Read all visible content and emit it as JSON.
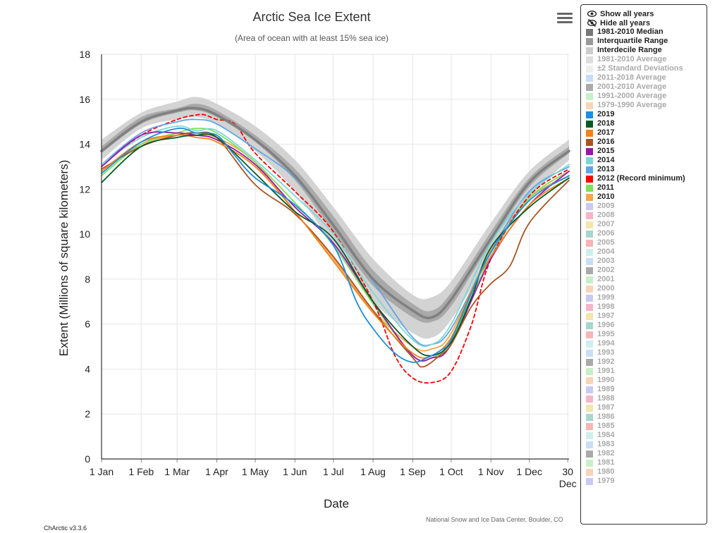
{
  "header": {
    "menu_icon": "hamburger-menu-icon"
  },
  "footer": {
    "version": "ChArctic v3.3.6",
    "credit": "National Snow and Ice Data Center, Boulder, CO"
  },
  "legend": {
    "show_all": "Show all years",
    "hide_all": "Hide all years",
    "show_icon": "eye-icon",
    "hide_icon": "eye-slash-icon",
    "items": [
      {
        "label": "1981-2010 Median",
        "color": "#777777",
        "active": true
      },
      {
        "label": "Interquartile Range",
        "color": "#999999",
        "active": true
      },
      {
        "label": "Interdecile Range",
        "color": "#cccccc",
        "active": true
      },
      {
        "label": "1981-2010 Average",
        "color": "#dddddd",
        "active": false
      },
      {
        "label": "±2 Standard Deviations",
        "color": "#eeeeee",
        "active": false
      },
      {
        "label": "2011-2018 Average",
        "color": "#c6dcf7",
        "active": false
      },
      {
        "label": "2001-2010 Average",
        "color": "#aaaaaa",
        "active": false
      },
      {
        "label": "1991-2000 Average",
        "color": "#c8f0c8",
        "active": false
      },
      {
        "label": "1979-1990 Average",
        "color": "#f7d5b8",
        "active": false
      },
      {
        "label": "2019",
        "color": "#1b8ee0",
        "active": true
      },
      {
        "label": "2018",
        "color": "#075b22",
        "active": true
      },
      {
        "label": "2017",
        "color": "#f58118",
        "active": true
      },
      {
        "label": "2016",
        "color": "#a85525",
        "active": true
      },
      {
        "label": "2015",
        "color": "#9b16a8",
        "active": true
      },
      {
        "label": "2014",
        "color": "#7ed6d6",
        "active": true
      },
      {
        "label": "2013",
        "color": "#5fa5e8",
        "active": true
      },
      {
        "label": "2012 (Record minimum)",
        "color": "#ff0000",
        "active": true
      },
      {
        "label": "2011",
        "color": "#7ee05a",
        "active": true
      },
      {
        "label": "2010",
        "color": "#f5a74a",
        "active": true
      },
      {
        "label": "2009",
        "color": "#c9c9f2",
        "active": false
      },
      {
        "label": "2008",
        "color": "#f5b5c8",
        "active": false
      },
      {
        "label": "2007",
        "color": "#f3e6ad",
        "active": false
      },
      {
        "label": "2006",
        "color": "#a8d6cc",
        "active": false
      },
      {
        "label": "2005",
        "color": "#f7b6b6",
        "active": false
      },
      {
        "label": "2004",
        "color": "#cdeff0",
        "active": false
      },
      {
        "label": "2003",
        "color": "#c8def5",
        "active": false
      },
      {
        "label": "2002",
        "color": "#aaaaaa",
        "active": false
      },
      {
        "label": "2001",
        "color": "#c8f0c8",
        "active": false
      },
      {
        "label": "2000",
        "color": "#f7d5b8",
        "active": false
      },
      {
        "label": "1999",
        "color": "#c9c9f2",
        "active": false
      },
      {
        "label": "1998",
        "color": "#f5b5c8",
        "active": false
      },
      {
        "label": "1997",
        "color": "#f3e6ad",
        "active": false
      },
      {
        "label": "1996",
        "color": "#a8d6cc",
        "active": false
      },
      {
        "label": "1995",
        "color": "#f7b6b6",
        "active": false
      },
      {
        "label": "1994",
        "color": "#cdeff0",
        "active": false
      },
      {
        "label": "1993",
        "color": "#c8def5",
        "active": false
      },
      {
        "label": "1992",
        "color": "#aaaaaa",
        "active": false
      },
      {
        "label": "1991",
        "color": "#c8f0c8",
        "active": false
      },
      {
        "label": "1990",
        "color": "#f7d5b8",
        "active": false
      },
      {
        "label": "1989",
        "color": "#c9c9f2",
        "active": false
      },
      {
        "label": "1988",
        "color": "#f5b5c8",
        "active": false
      },
      {
        "label": "1987",
        "color": "#f3e6ad",
        "active": false
      },
      {
        "label": "1986",
        "color": "#a8d6cc",
        "active": false
      },
      {
        "label": "1985",
        "color": "#f7b6b6",
        "active": false
      },
      {
        "label": "1984",
        "color": "#cdeff0",
        "active": false
      },
      {
        "label": "1983",
        "color": "#c8def5",
        "active": false
      },
      {
        "label": "1982",
        "color": "#aaaaaa",
        "active": false
      },
      {
        "label": "1981",
        "color": "#c8f0c8",
        "active": false
      },
      {
        "label": "1980",
        "color": "#f7d5b8",
        "active": false
      },
      {
        "label": "1979",
        "color": "#c9c9f2",
        "active": false
      }
    ]
  },
  "chart_data": {
    "type": "line",
    "title": "Arctic Sea Ice Extent",
    "subtitle": "(Area of ocean with at least 15% sea ice)",
    "xlabel": "Date",
    "ylabel": "Extent (Millions of square kilometers)",
    "x_unit": "day of year",
    "xlim": [
      1,
      366
    ],
    "ylim": [
      0,
      18
    ],
    "yticks": [
      0,
      2,
      4,
      6,
      8,
      10,
      12,
      14,
      16,
      18
    ],
    "xticks": [
      {
        "label": "1 Jan",
        "day": 1
      },
      {
        "label": "1 Feb",
        "day": 32
      },
      {
        "label": "1 Mar",
        "day": 60
      },
      {
        "label": "1 Apr",
        "day": 91
      },
      {
        "label": "1 May",
        "day": 121
      },
      {
        "label": "1 Jun",
        "day": 152
      },
      {
        "label": "1 Jul",
        "day": 182
      },
      {
        "label": "1 Aug",
        "day": 213
      },
      {
        "label": "1 Sep",
        "day": 244
      },
      {
        "label": "1 Oct",
        "day": 274
      },
      {
        "label": "1 Nov",
        "day": 305
      },
      {
        "label": "1 Dec",
        "day": 335
      },
      {
        "label": "30",
        "sub": "Dec",
        "day": 365
      }
    ],
    "grid": true,
    "legend_position": "right",
    "bands": [
      {
        "name": "Interdecile Range",
        "color": "#d3d3d3",
        "x": [
          1,
          32,
          60,
          75,
          91,
          121,
          152,
          182,
          213,
          244,
          259,
          274,
          305,
          335,
          366
        ],
        "upper": [
          14.2,
          15.4,
          15.9,
          16.1,
          15.8,
          14.8,
          13.3,
          11.2,
          8.9,
          7.3,
          7.2,
          7.9,
          10.5,
          12.8,
          14.2
        ],
        "lower": [
          13.3,
          14.7,
          15.1,
          15.2,
          14.9,
          13.7,
          11.9,
          9.5,
          7.0,
          5.6,
          5.4,
          6.2,
          9.0,
          11.6,
          13.3
        ]
      },
      {
        "name": "Interquartile Range",
        "color": "#a9a9a9",
        "x": [
          1,
          32,
          60,
          75,
          91,
          121,
          152,
          182,
          213,
          244,
          259,
          274,
          305,
          335,
          366
        ],
        "upper": [
          13.9,
          15.2,
          15.6,
          15.8,
          15.5,
          14.4,
          12.9,
          10.8,
          8.4,
          6.9,
          6.6,
          7.4,
          10.1,
          12.5,
          13.9
        ],
        "lower": [
          13.6,
          14.9,
          15.4,
          15.5,
          15.2,
          14.1,
          12.4,
          10.1,
          7.7,
          6.3,
          6.1,
          6.8,
          9.6,
          12.1,
          13.6
        ]
      }
    ],
    "series": [
      {
        "name": "1981-2010 Median",
        "color": "#808080",
        "width": 3.5,
        "dash": false,
        "x": [
          1,
          32,
          60,
          75,
          91,
          121,
          152,
          182,
          213,
          244,
          259,
          274,
          305,
          335,
          366
        ],
        "y": [
          13.7,
          15.0,
          15.5,
          15.6,
          15.3,
          14.2,
          12.6,
          10.4,
          8.0,
          6.6,
          6.3,
          7.1,
          9.8,
          12.3,
          13.7
        ]
      },
      {
        "name": "2019",
        "color": "#1b8ee0",
        "width": 1.8,
        "dash": false,
        "x": [
          1,
          32,
          60,
          75,
          91,
          105,
          121,
          152,
          182,
          200,
          213,
          230,
          244,
          255,
          265,
          274,
          290,
          305,
          335,
          366
        ],
        "y": [
          12.7,
          14.1,
          14.7,
          14.5,
          14.4,
          13.5,
          12.5,
          11.3,
          9.5,
          7.0,
          5.8,
          4.7,
          4.3,
          4.5,
          4.8,
          5.3,
          7.4,
          9.2,
          11.5,
          12.6
        ]
      },
      {
        "name": "2018",
        "color": "#075b22",
        "width": 1.8,
        "dash": false,
        "x": [
          1,
          32,
          60,
          75,
          91,
          121,
          152,
          182,
          213,
          244,
          259,
          274,
          290,
          305,
          335,
          366
        ],
        "y": [
          12.3,
          13.9,
          14.3,
          14.4,
          14.3,
          12.7,
          11.0,
          9.8,
          7.0,
          5.0,
          4.6,
          5.2,
          7.2,
          9.4,
          11.2,
          12.5
        ]
      },
      {
        "name": "2017",
        "color": "#f58118",
        "width": 1.8,
        "dash": false,
        "x": [
          1,
          32,
          60,
          75,
          91,
          121,
          152,
          182,
          213,
          244,
          259,
          274,
          290,
          305,
          335,
          366
        ],
        "y": [
          12.8,
          14.1,
          14.4,
          14.3,
          14.1,
          13.0,
          11.0,
          8.8,
          6.5,
          4.7,
          4.6,
          5.4,
          7.5,
          9.0,
          11.3,
          12.5
        ]
      },
      {
        "name": "2016",
        "color": "#a85525",
        "width": 1.8,
        "dash": false,
        "x": [
          1,
          32,
          60,
          75,
          91,
          121,
          152,
          182,
          213,
          244,
          252,
          265,
          274,
          290,
          305,
          320,
          335,
          366
        ],
        "y": [
          12.9,
          13.9,
          14.4,
          14.5,
          14.3,
          12.2,
          10.9,
          9.0,
          6.6,
          4.5,
          4.1,
          4.6,
          5.1,
          6.8,
          7.8,
          8.6,
          10.5,
          12.4
        ]
      },
      {
        "name": "2015",
        "color": "#9b16a8",
        "width": 1.8,
        "dash": false,
        "x": [
          1,
          32,
          60,
          75,
          91,
          121,
          152,
          182,
          213,
          244,
          259,
          274,
          305,
          335,
          366
        ],
        "y": [
          13.0,
          14.4,
          14.5,
          14.4,
          14.2,
          13.1,
          11.2,
          9.6,
          7.0,
          4.6,
          4.5,
          5.1,
          8.9,
          11.3,
          12.8
        ]
      },
      {
        "name": "2014",
        "color": "#7ed6d6",
        "width": 1.8,
        "dash": false,
        "x": [
          1,
          32,
          60,
          75,
          91,
          121,
          152,
          182,
          213,
          244,
          259,
          274,
          305,
          335,
          366
        ],
        "y": [
          13.1,
          14.3,
          14.8,
          14.6,
          14.6,
          13.3,
          11.7,
          10.0,
          7.4,
          5.3,
          5.1,
          6.0,
          9.6,
          11.8,
          13.1
        ]
      },
      {
        "name": "2013",
        "color": "#5fa5e8",
        "width": 1.8,
        "dash": false,
        "x": [
          1,
          32,
          60,
          75,
          91,
          121,
          152,
          182,
          213,
          244,
          259,
          274,
          305,
          335,
          366
        ],
        "y": [
          13.1,
          14.5,
          15.0,
          15.1,
          14.9,
          13.8,
          12.5,
          10.4,
          7.9,
          5.4,
          5.1,
          5.8,
          9.2,
          11.9,
          13.0
        ]
      },
      {
        "name": "2012 (Record minimum)",
        "color": "#ff0000",
        "width": 1.8,
        "dash": true,
        "x": [
          1,
          32,
          60,
          75,
          82,
          91,
          105,
          121,
          152,
          182,
          213,
          230,
          244,
          259,
          274,
          290,
          305,
          335,
          366
        ],
        "y": [
          13.1,
          14.4,
          15.1,
          15.3,
          15.3,
          15.1,
          14.9,
          13.6,
          11.9,
          10.1,
          7.0,
          4.6,
          3.6,
          3.4,
          3.9,
          6.0,
          8.9,
          11.7,
          12.9
        ]
      },
      {
        "name": "2011",
        "color": "#7ee05a",
        "width": 1.8,
        "dash": false,
        "x": [
          1,
          32,
          60,
          75,
          91,
          121,
          152,
          182,
          213,
          244,
          259,
          274,
          305,
          335,
          366
        ],
        "y": [
          12.6,
          14.0,
          14.5,
          14.7,
          14.5,
          13.2,
          11.4,
          9.5,
          6.9,
          4.6,
          4.5,
          5.3,
          9.0,
          11.6,
          12.8
        ]
      },
      {
        "name": "2010",
        "color": "#f5a74a",
        "width": 1.8,
        "dash": false,
        "x": [
          1,
          32,
          60,
          75,
          91,
          121,
          152,
          182,
          213,
          244,
          259,
          274,
          305,
          335,
          366
        ],
        "y": [
          12.8,
          14.0,
          14.4,
          14.4,
          14.3,
          13.2,
          11.0,
          8.9,
          6.6,
          5.0,
          4.9,
          5.6,
          9.3,
          11.6,
          12.6
        ]
      }
    ]
  }
}
